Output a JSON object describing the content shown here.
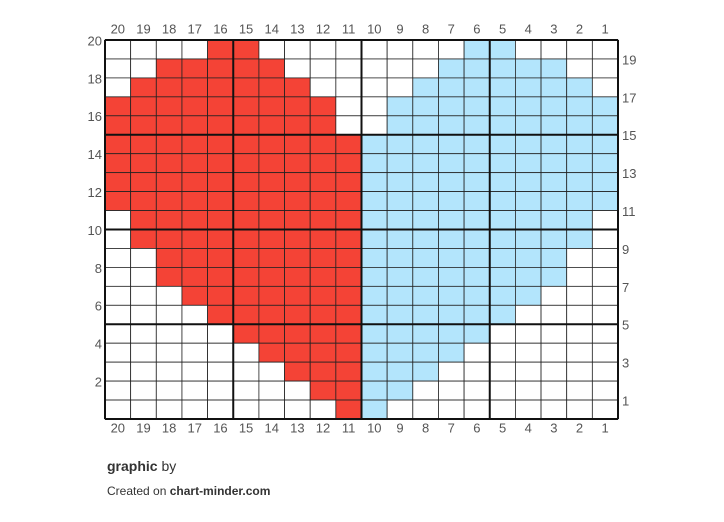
{
  "grid": {
    "column_labels": [
      "20",
      "19",
      "18",
      "17",
      "16",
      "15",
      "14",
      "13",
      "12",
      "11",
      "10",
      "9",
      "8",
      "7",
      "6",
      "5",
      "4",
      "3",
      "2",
      "1"
    ],
    "colors": {
      "R": "#f44336",
      "B": "#b3e5fc",
      "W": "#ffffff"
    },
    "rows": [
      {
        "label": "20",
        "cells": "WWWWRRWWWWWWWWBBWWWW"
      },
      {
        "label": "19",
        "cells": "WWRRRRRWWWWWWBBBBBWW"
      },
      {
        "label": "18",
        "cells": "WRRRRRRRWWWWBBBBBBBW"
      },
      {
        "label": "17",
        "cells": "RRRRRRRRRWWBBBBBBBBB"
      },
      {
        "label": "16",
        "cells": "RRRRRRRRRWWBBBBBBBBB"
      },
      {
        "label": "15",
        "cells": "RRRRRRRRRRBBBBBBBBBB"
      },
      {
        "label": "14",
        "cells": "RRRRRRRRRRBBBBBBBBBB"
      },
      {
        "label": "13",
        "cells": "RRRRRRRRRRBBBBBBBBBB"
      },
      {
        "label": "12",
        "cells": "RRRRRRRRRRBBBBBBBBBB"
      },
      {
        "label": "11",
        "cells": "WRRRRRRRRRBBBBBBBBBW"
      },
      {
        "label": "10",
        "cells": "WRRRRRRRRRBBBBBBBBBW"
      },
      {
        "label": "9",
        "cells": "WWRRRRRRRRBBBBBBBBWW"
      },
      {
        "label": "8",
        "cells": "WWRRRRRRRRBBBBBBBBWW"
      },
      {
        "label": "7",
        "cells": "WWWRRRRRRRBBBBBBBWWW"
      },
      {
        "label": "6",
        "cells": "WWWWRRRRRRBBBBBBWWWW"
      },
      {
        "label": "5",
        "cells": "WWWWWRRRRRBBBBBWWWWW"
      },
      {
        "label": "4",
        "cells": "WWWWWWRRRRBBBBWWWWWW"
      },
      {
        "label": "3",
        "cells": "WWWWWWWRRRBBBWWWWWWW"
      },
      {
        "label": "2",
        "cells": "WWWWWWWWRRBBWWWWWWWW"
      },
      {
        "label": "1",
        "cells": "WWWWWWWWWRBWWWWWWWWW"
      }
    ]
  },
  "footer": {
    "title": "graphic",
    "by": "by",
    "created": "Created on",
    "site": "chart-minder.com"
  }
}
